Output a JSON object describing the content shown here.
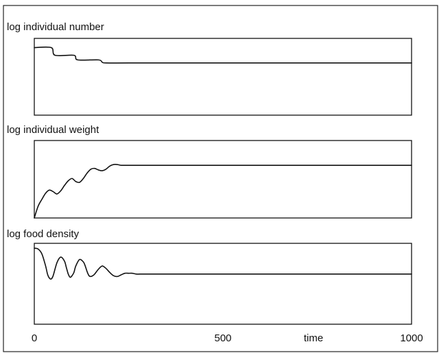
{
  "chart_data": [
    {
      "type": "line",
      "title": "log individual number",
      "xlim": [
        0,
        1000
      ],
      "ylim": [
        0,
        1
      ],
      "x": [
        0,
        45,
        55,
        105,
        115,
        170,
        180,
        190,
        250,
        400,
        600,
        800,
        1000
      ],
      "series": [
        {
          "values": [
            0.88,
            0.88,
            0.78,
            0.78,
            0.72,
            0.72,
            0.69,
            0.68,
            0.68,
            0.68,
            0.68,
            0.68,
            0.68
          ]
        }
      ]
    },
    {
      "type": "line",
      "title": "log individual weight",
      "xlim": [
        0,
        1000
      ],
      "ylim": [
        0,
        1
      ],
      "x": [
        0,
        10,
        20,
        30,
        40,
        50,
        60,
        70,
        80,
        90,
        100,
        110,
        120,
        130,
        140,
        150,
        160,
        170,
        180,
        190,
        200,
        210,
        220,
        230,
        240,
        250,
        260,
        280,
        300,
        400,
        600,
        800,
        1000
      ],
      "series": [
        {
          "values": [
            0.0,
            0.15,
            0.24,
            0.32,
            0.36,
            0.34,
            0.31,
            0.35,
            0.42,
            0.48,
            0.51,
            0.47,
            0.46,
            0.51,
            0.58,
            0.63,
            0.64,
            0.62,
            0.61,
            0.63,
            0.67,
            0.69,
            0.69,
            0.68,
            0.68,
            0.68,
            0.68,
            0.68,
            0.68,
            0.68,
            0.68,
            0.68,
            0.68
          ]
        }
      ]
    },
    {
      "type": "line",
      "title": "log food density",
      "xlim": [
        0,
        1000
      ],
      "ylim": [
        0,
        1
      ],
      "x": [
        0,
        10,
        20,
        30,
        35,
        40,
        45,
        50,
        60,
        70,
        80,
        85,
        90,
        95,
        100,
        105,
        110,
        120,
        130,
        135,
        140,
        145,
        150,
        155,
        160,
        170,
        180,
        190,
        200,
        210,
        220,
        230,
        240,
        250,
        260,
        270,
        280,
        300,
        400,
        600,
        800,
        1000
      ],
      "series": [
        {
          "values": [
            0.94,
            0.93,
            0.87,
            0.72,
            0.62,
            0.57,
            0.56,
            0.6,
            0.76,
            0.83,
            0.78,
            0.7,
            0.62,
            0.58,
            0.6,
            0.64,
            0.72,
            0.8,
            0.77,
            0.72,
            0.65,
            0.6,
            0.59,
            0.6,
            0.62,
            0.68,
            0.72,
            0.69,
            0.64,
            0.6,
            0.59,
            0.61,
            0.63,
            0.63,
            0.63,
            0.62,
            0.62,
            0.62,
            0.62,
            0.62,
            0.62,
            0.62
          ]
        }
      ]
    }
  ],
  "x_axis": {
    "tick_labels": [
      {
        "value": 0,
        "label": "0"
      },
      {
        "value": 500,
        "label": "500"
      },
      {
        "value": 1000,
        "label": "1000"
      }
    ],
    "axis_label": "time",
    "axis_label_value": 740
  }
}
